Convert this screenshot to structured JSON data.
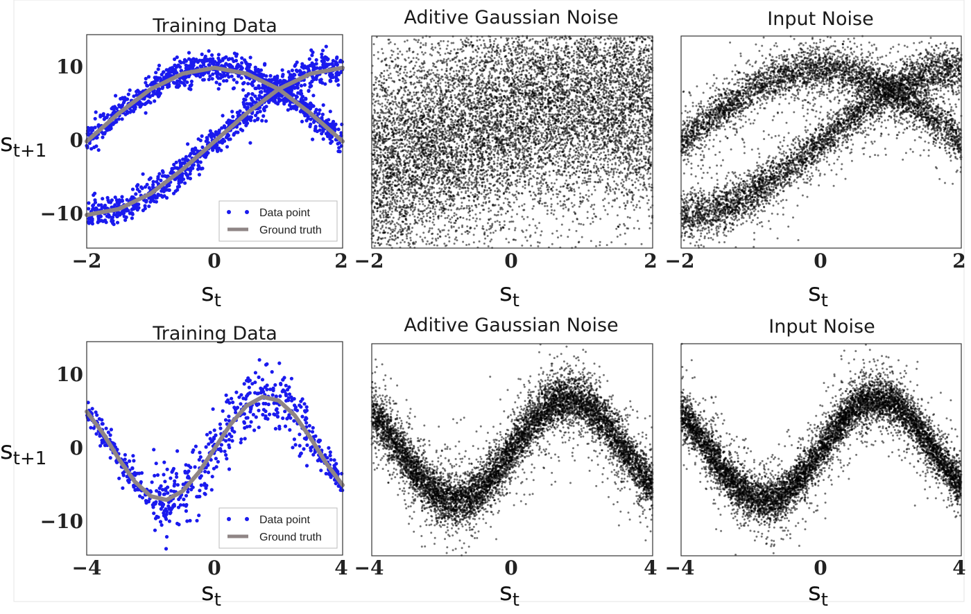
{
  "chart_data": [
    {
      "type": "scatter",
      "title": "Training Data",
      "xlabel": "s",
      "xlabel_sub": "t",
      "ylabel": "s",
      "ylabel_sub": "t+1",
      "xlim": [
        -2,
        2
      ],
      "ylim": [
        -14.5,
        14.5
      ],
      "xticks": [
        "−2",
        "0",
        "2"
      ],
      "yticks": [
        {
          "v": 10,
          "label": "10"
        },
        {
          "v": 0,
          "label": "0"
        },
        {
          "v": -10,
          "label": "−10"
        }
      ],
      "legend_position": "lower-right",
      "series": [
        {
          "name": "Data point",
          "kind": "points",
          "color": "#1a1aee",
          "branches": [
            {
              "amp": 10,
              "freq": 0.785,
              "shift": 1.571,
              "noise": 1.0
            },
            {
              "amp": 10,
              "freq": 0.785,
              "shift": 0.0,
              "noise": 1.0
            }
          ]
        },
        {
          "name": "Ground truth",
          "kind": "curve",
          "color": "#8f8585",
          "curves": [
            {
              "x": [
                -2,
                -1.5,
                -1,
                -0.5,
                0,
                0.5,
                1,
                1.5,
                2
              ],
              "y": [
                -0.0,
                3.8,
                7.1,
                9.2,
                10.0,
                9.2,
                7.1,
                3.8,
                0.0
              ]
            },
            {
              "x": [
                -2,
                -1.5,
                -1,
                -0.5,
                0,
                0.5,
                1,
                1.5,
                2
              ],
              "y": [
                -10.0,
                -9.2,
                -7.1,
                -3.8,
                0.0,
                3.8,
                7.1,
                9.2,
                10.0
              ]
            }
          ]
        }
      ]
    },
    {
      "type": "scatter",
      "title": "Aditive Gaussian Noise",
      "xlabel": "s",
      "xlabel_sub": "t",
      "xlim": [
        -2,
        2
      ],
      "ylim": [
        -14.5,
        14.5
      ],
      "xticks": [
        "−2",
        "0",
        "2"
      ],
      "density": {
        "color": "#000000",
        "center": [
          {
            "x": -2,
            "y": -4
          },
          {
            "x": -1,
            "y": 0
          },
          {
            "x": 0,
            "y": 4
          },
          {
            "x": 1,
            "y": 6
          },
          {
            "x": 2,
            "y": 5
          }
        ],
        "spread": 7.0
      }
    },
    {
      "type": "scatter",
      "title": "Input Noise",
      "xlabel": "s",
      "xlabel_sub": "t",
      "xlim": [
        -2,
        2
      ],
      "ylim": [
        -14.5,
        14.5
      ],
      "xticks": [
        "−2",
        "0",
        "2"
      ],
      "density": {
        "color": "#000000",
        "branches": [
          {
            "amp": 10,
            "freq": 0.785,
            "shift": 1.571
          },
          {
            "amp": 10,
            "freq": 0.785,
            "shift": 0.0
          }
        ],
        "spread": 1.4
      }
    },
    {
      "type": "scatter",
      "title": "Training Data",
      "xlabel": "s",
      "xlabel_sub": "t",
      "ylabel": "s",
      "ylabel_sub": "t+1",
      "xlim": [
        -4,
        4
      ],
      "ylim": [
        -14.5,
        14.5
      ],
      "xticks": [
        "−4",
        "0",
        "4"
      ],
      "yticks": [
        {
          "v": 10,
          "label": "10"
        },
        {
          "v": 0,
          "label": "0"
        },
        {
          "v": -10,
          "label": "−10"
        }
      ],
      "legend_position": "lower-right",
      "series": [
        {
          "name": "Data point",
          "kind": "points",
          "color": "#1a1aee",
          "wave": {
            "amp": 7,
            "freq": 0.98,
            "shift": 0.0
          },
          "noise": 1.5
        },
        {
          "name": "Ground truth",
          "kind": "curve",
          "color": "#8f8585",
          "curves": [
            {
              "x": [
                -4,
                -3.5,
                -3,
                -2.5,
                -2,
                -1.5,
                -1,
                -0.5,
                0,
                0.5,
                1,
                1.5,
                2,
                2.5,
                3,
                3.5,
                4
              ],
              "y": [
                5.0,
                2.1,
                -1.4,
                -4.5,
                -6.5,
                -7.0,
                -5.8,
                -3.3,
                0.0,
                3.3,
                5.8,
                7.0,
                6.5,
                4.5,
                1.4,
                -2.1,
                -5.0
              ]
            }
          ]
        }
      ]
    },
    {
      "type": "scatter",
      "title": "Aditive Gaussian Noise",
      "xlabel": "s",
      "xlabel_sub": "t",
      "xlim": [
        -4,
        4
      ],
      "ylim": [
        -14.5,
        14.5
      ],
      "xticks": [
        "−4",
        "0",
        "4"
      ],
      "density": {
        "color": "#000000",
        "wave": {
          "amp": 7,
          "freq": 0.98,
          "shift": 0.0
        },
        "spread": 1.6
      }
    },
    {
      "type": "scatter",
      "title": "Input Noise",
      "xlabel": "s",
      "xlabel_sub": "t",
      "xlim": [
        -4,
        4
      ],
      "ylim": [
        -14.5,
        14.5
      ],
      "xticks": [
        "−4",
        "0",
        "4"
      ],
      "density": {
        "color": "#000000",
        "wave": {
          "amp": 7,
          "freq": 0.98,
          "shift": 0.0
        },
        "spread": 1.4
      }
    }
  ]
}
